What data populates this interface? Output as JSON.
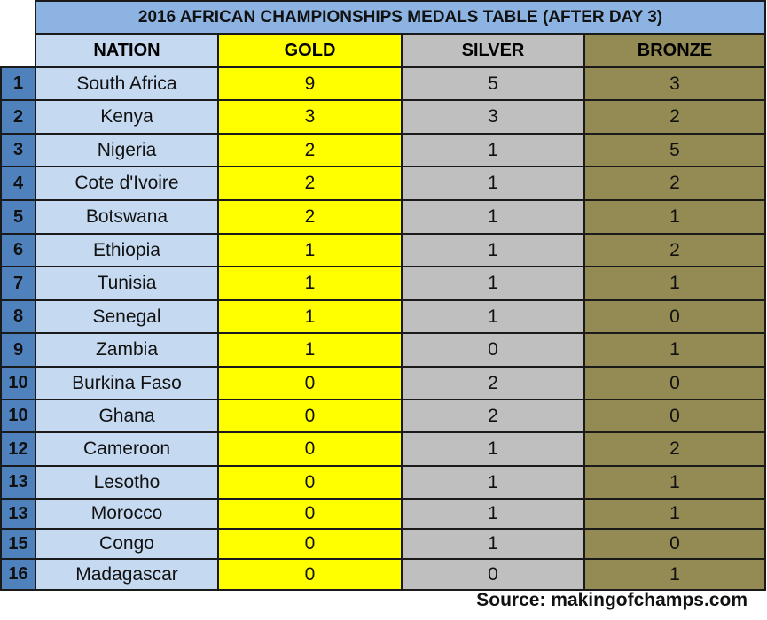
{
  "colors": {
    "title_bg": "#8db3e2",
    "rank_bg": "#4f81bd",
    "nation_bg": "#c5d9f1",
    "gold_bg": "#ffff00",
    "silver_bg": "#bfbfbf",
    "bronze_bg": "#948a54"
  },
  "chart_data": {
    "type": "table",
    "title": "2016 AFRICAN CHAMPIONSHIPS MEDALS TABLE (AFTER DAY 3)",
    "columns": [
      "NATION",
      "GOLD",
      "SILVER",
      "BRONZE"
    ],
    "rows": [
      {
        "rank": "1",
        "nation": "South Africa",
        "gold": "9",
        "silver": "5",
        "bronze": "3"
      },
      {
        "rank": "2",
        "nation": "Kenya",
        "gold": "3",
        "silver": "3",
        "bronze": "2"
      },
      {
        "rank": "3",
        "nation": "Nigeria",
        "gold": "2",
        "silver": "1",
        "bronze": "5"
      },
      {
        "rank": "4",
        "nation": "Cote d'Ivoire",
        "gold": "2",
        "silver": "1",
        "bronze": "2"
      },
      {
        "rank": "5",
        "nation": "Botswana",
        "gold": "2",
        "silver": "1",
        "bronze": "1"
      },
      {
        "rank": "6",
        "nation": "Ethiopia",
        "gold": "1",
        "silver": "1",
        "bronze": "2"
      },
      {
        "rank": "7",
        "nation": "Tunisia",
        "gold": "1",
        "silver": "1",
        "bronze": "1"
      },
      {
        "rank": "8",
        "nation": "Senegal",
        "gold": "1",
        "silver": "1",
        "bronze": "0"
      },
      {
        "rank": "9",
        "nation": "Zambia",
        "gold": "1",
        "silver": "0",
        "bronze": "1"
      },
      {
        "rank": "10",
        "nation": "Burkina Faso",
        "gold": "0",
        "silver": "2",
        "bronze": "0"
      },
      {
        "rank": "10",
        "nation": "Ghana",
        "gold": "0",
        "silver": "2",
        "bronze": "0"
      },
      {
        "rank": "12",
        "nation": "Cameroon",
        "gold": "0",
        "silver": "1",
        "bronze": "2"
      },
      {
        "rank": "13",
        "nation": "Lesotho",
        "gold": "0",
        "silver": "1",
        "bronze": "1"
      },
      {
        "rank": "13",
        "nation": "Morocco",
        "gold": "0",
        "silver": "1",
        "bronze": "1"
      },
      {
        "rank": "15",
        "nation": "Congo",
        "gold": "0",
        "silver": "1",
        "bronze": "0"
      },
      {
        "rank": "16",
        "nation": "Madagascar",
        "gold": "0",
        "silver": "0",
        "bronze": "1"
      }
    ],
    "source": "Source: makingofchamps.com"
  }
}
